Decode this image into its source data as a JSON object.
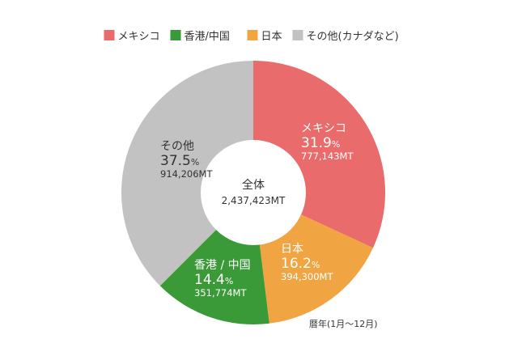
{
  "chart_data": {
    "type": "pie",
    "donut": true,
    "legend_position": "top",
    "center": {
      "title": "全体",
      "value": "2,437,423MT"
    },
    "note": "暦年(1月～12月)",
    "slices": [
      {
        "legend": "メキシコ",
        "label": "メキシコ",
        "percent": 31.9,
        "percent_text": "31.9",
        "value": 777143,
        "value_text": "777,143MT",
        "color": "#ea6b6b",
        "text_color": "#ffffff"
      },
      {
        "legend": "日本",
        "label": "日本",
        "percent": 16.2,
        "percent_text": "16.2",
        "value": 394300,
        "value_text": "394,300MT",
        "color": "#f0a542",
        "text_color": "#ffffff"
      },
      {
        "legend": "香港/中国",
        "label": "香港 / 中国",
        "percent": 14.4,
        "percent_text": "14.4",
        "value": 351774,
        "value_text": "351,774MT",
        "color": "#3a9a38",
        "text_color": "#ffffff"
      },
      {
        "legend": "その他(カナダなど)",
        "label": "その他",
        "percent": 37.5,
        "percent_text": "37.5",
        "value": 914206,
        "value_text": "914,206MT",
        "color": "#c2c2c2",
        "text_color": "#333333"
      }
    ],
    "legend_order": [
      0,
      2,
      1,
      3
    ],
    "percent_unit": "%"
  }
}
